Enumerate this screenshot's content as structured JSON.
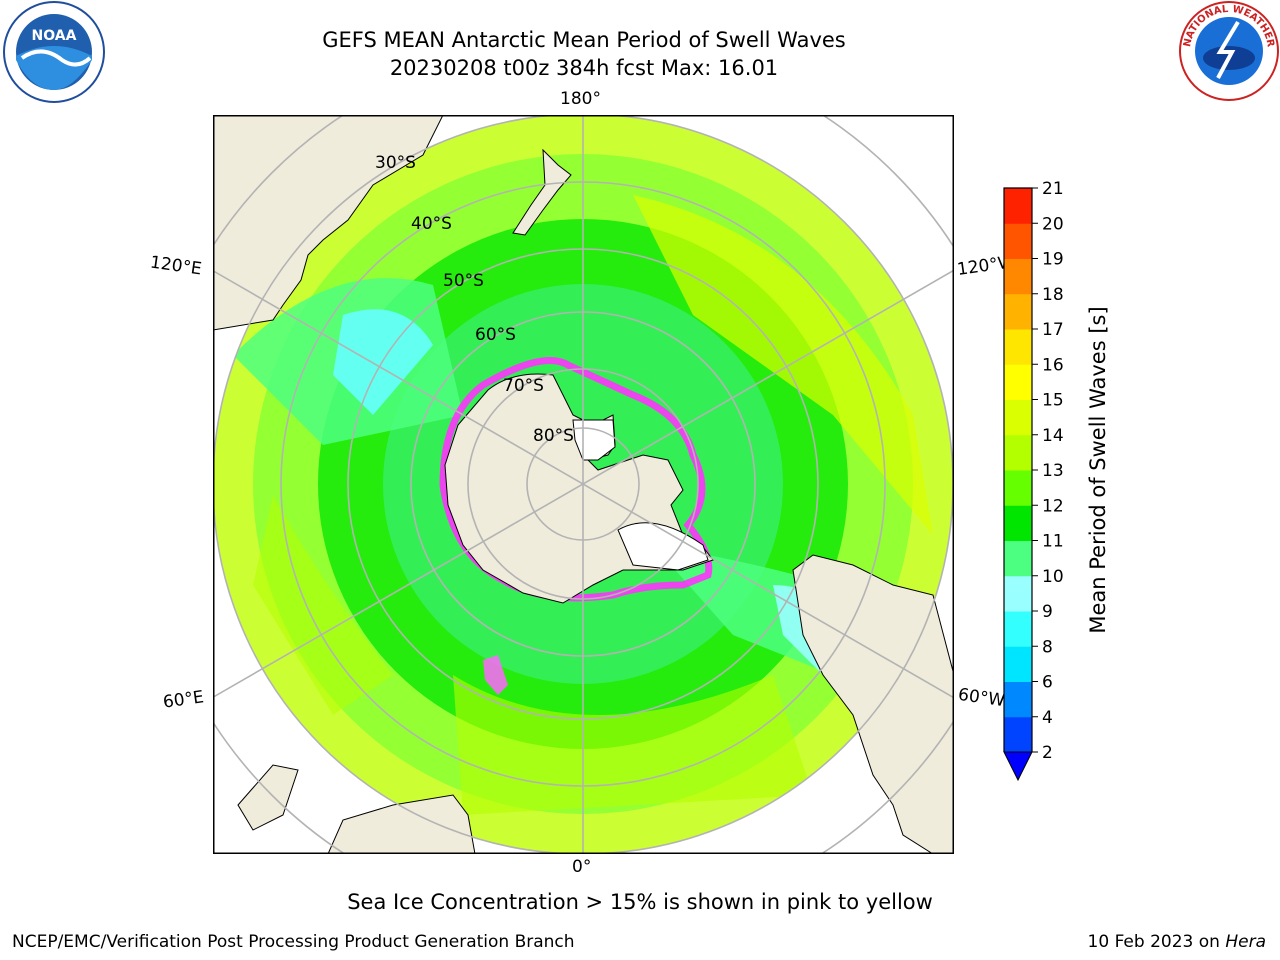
{
  "header": {
    "title_line1": "GEFS MEAN Antarctic Mean Period of Swell Waves",
    "title_line2": "20230208 t00z 384h fcst   Max: 16.01"
  },
  "logos": {
    "left": {
      "name": "noaa-logo",
      "text": "NOAA"
    },
    "right": {
      "name": "nws-logo",
      "text": "NATIONAL WEATHER SERVICE"
    }
  },
  "map": {
    "projection": "south-polar-stereographic",
    "longitude_labels": {
      "top": "180°",
      "bottom": "0°",
      "upper_left": "120°E",
      "upper_right": "120°W",
      "lower_left": "60°E",
      "lower_right": "60°W"
    },
    "latitude_labels": [
      "30°S",
      "40°S",
      "50°S",
      "60°S",
      "70°S",
      "80°S"
    ],
    "colors": {
      "land": "#efecdc",
      "ocean_low": "#4dff80",
      "ocean_mid": "#00e600",
      "ocean_high": "#ccff00",
      "sea_ice": "#ff66ff",
      "grid": "#b3b3b3"
    }
  },
  "colorbar": {
    "label": "Mean Period of Swell Waves [s]",
    "ticks": [
      "2",
      "4",
      "6",
      "8",
      "9",
      "10",
      "11",
      "12",
      "13",
      "14",
      "15",
      "16",
      "17",
      "18",
      "19",
      "20",
      "21"
    ],
    "colors": [
      "#0044ff",
      "#0088ff",
      "#00e5ff",
      "#33ffff",
      "#99ffff",
      "#4dff80",
      "#00e600",
      "#66ff00",
      "#b3ff00",
      "#d9ff00",
      "#ffff00",
      "#ffe600",
      "#ffb300",
      "#ff8800",
      "#ff5500",
      "#ff2200"
    ],
    "extend": "min"
  },
  "subtitle": "Sea Ice Concentration > 15% is shown in pink to yellow",
  "footer": {
    "left": "NCEP/EMC/Verification Post Processing Product Generation Branch",
    "right_prefix": "10 Feb 2023 on ",
    "right_system": "Hera"
  }
}
